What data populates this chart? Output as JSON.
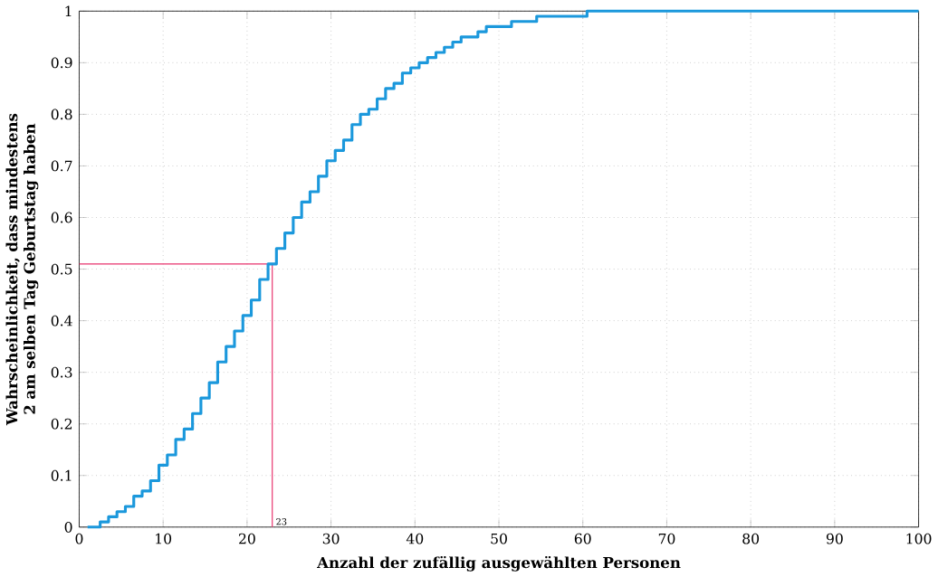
{
  "chart_data": {
    "type": "step",
    "xlabel": "Anzahl der zufällig ausgewählten Personen",
    "ylabel": "Wahrscheinlichkeit, dass mindestens 2 am selben Tag Geburtstag haben",
    "x": [
      1,
      2,
      3,
      4,
      5,
      6,
      7,
      8,
      9,
      10,
      11,
      12,
      13,
      14,
      15,
      16,
      17,
      18,
      19,
      20,
      21,
      22,
      23,
      24,
      25,
      26,
      27,
      28,
      29,
      30,
      31,
      32,
      33,
      34,
      35,
      36,
      37,
      38,
      39,
      40,
      41,
      42,
      43,
      44,
      45,
      46,
      47,
      48,
      49,
      50,
      51,
      52,
      53,
      54,
      55,
      56,
      57,
      58,
      59,
      60,
      61,
      62,
      63,
      64,
      65,
      66,
      67,
      68,
      69,
      70,
      71,
      72,
      73,
      74,
      75,
      76,
      77,
      78,
      79,
      80,
      81,
      82,
      83,
      84,
      85,
      86,
      87,
      88,
      89,
      90,
      91,
      92,
      93,
      94,
      95,
      96,
      97,
      98,
      99,
      100
    ],
    "values": [
      0,
      0.0,
      0.01,
      0.02,
      0.03,
      0.04,
      0.06,
      0.07,
      0.09,
      0.12,
      0.14,
      0.17,
      0.19,
      0.22,
      0.25,
      0.28,
      0.32,
      0.35,
      0.38,
      0.41,
      0.44,
      0.48,
      0.51,
      0.54,
      0.57,
      0.6,
      0.63,
      0.65,
      0.68,
      0.71,
      0.73,
      0.75,
      0.78,
      0.8,
      0.81,
      0.83,
      0.85,
      0.86,
      0.88,
      0.89,
      0.9,
      0.91,
      0.92,
      0.93,
      0.94,
      0.95,
      0.95,
      0.96,
      0.97,
      0.97,
      0.97,
      0.98,
      0.98,
      0.98,
      0.99,
      0.99,
      0.99,
      0.99,
      0.99,
      0.99,
      1,
      1,
      1,
      1,
      1,
      1,
      1,
      1,
      1,
      1,
      1,
      1,
      1,
      1,
      1,
      1,
      1,
      1,
      1,
      1,
      1,
      1,
      1,
      1,
      1,
      1,
      1,
      1,
      1,
      1,
      1,
      1,
      1,
      1,
      1,
      1,
      1,
      1,
      1,
      1
    ],
    "color": "#1b98dc",
    "xlim": [
      0,
      100
    ],
    "ylim": [
      0,
      1
    ],
    "xticks": [
      0,
      10,
      20,
      30,
      40,
      50,
      60,
      70,
      80,
      90,
      100
    ],
    "yticks": [
      0,
      0.1,
      0.2,
      0.3,
      0.4,
      0.5,
      0.6,
      0.7,
      0.8,
      0.9,
      1
    ],
    "grid": true,
    "ref_lines": [
      {
        "axis": "x",
        "value": 23,
        "label": "23",
        "color": "#e8336d"
      },
      {
        "axis": "y",
        "value": 0.51,
        "color": "#e8336d"
      }
    ]
  }
}
